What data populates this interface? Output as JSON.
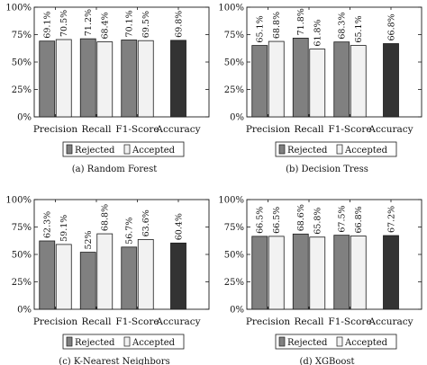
{
  "colors": {
    "rejected": "#808080",
    "accepted": "#f2f2f2",
    "accuracy": "#333333",
    "stroke": "#1a1a1a"
  },
  "chart_data": [
    {
      "type": "bar",
      "caption": "(a) Random Forest",
      "categories": [
        "Precision",
        "Recall",
        "F1-Score",
        "Accuracy"
      ],
      "series": [
        {
          "name": "Rejected",
          "values": [
            69.1,
            71.2,
            70.1,
            null
          ],
          "labels": [
            "69.1%",
            "71.2%",
            "70.1%",
            ""
          ]
        },
        {
          "name": "Accepted",
          "values": [
            70.5,
            68.4,
            69.5,
            null
          ],
          "labels": [
            "70.5%",
            "68.4%",
            "69.5%",
            ""
          ]
        },
        {
          "name": "",
          "values": [
            null,
            null,
            null,
            69.8
          ],
          "labels": [
            "",
            "",
            "",
            "69.8%"
          ]
        }
      ],
      "yticks": [
        "0%",
        "25%",
        "50%",
        "75%",
        "100%"
      ],
      "ylim": [
        0,
        100
      ],
      "legend": [
        "Rejected",
        "Accepted"
      ],
      "legend_position": "bottom"
    },
    {
      "type": "bar",
      "caption": "(b) Decision Tress",
      "categories": [
        "Precision",
        "Recall",
        "F1-Score",
        "Accuracy"
      ],
      "series": [
        {
          "name": "Rejected",
          "values": [
            65.1,
            71.8,
            68.3,
            null
          ],
          "labels": [
            "65.1%",
            "71.8%",
            "68.3%",
            ""
          ]
        },
        {
          "name": "Accepted",
          "values": [
            68.8,
            61.8,
            65.1,
            null
          ],
          "labels": [
            "68.8%",
            "61.8%",
            "65.1%",
            ""
          ]
        },
        {
          "name": "",
          "values": [
            null,
            null,
            null,
            66.8
          ],
          "labels": [
            "",
            "",
            "",
            "66.8%"
          ]
        }
      ],
      "yticks": [
        "0%",
        "25%",
        "50%",
        "75%",
        "100%"
      ],
      "ylim": [
        0,
        100
      ],
      "legend": [
        "Rejected",
        "Accepted"
      ],
      "legend_position": "bottom"
    },
    {
      "type": "bar",
      "caption": "(c) K-Nearest Neighbors",
      "categories": [
        "Precision",
        "Recall",
        "F1-Score",
        "Accuracy"
      ],
      "series": [
        {
          "name": "Rejected",
          "values": [
            62.3,
            52,
            56.7,
            null
          ],
          "labels": [
            "62.3%",
            "52%",
            "56.7%",
            ""
          ]
        },
        {
          "name": "Accepted",
          "values": [
            59.1,
            68.8,
            63.6,
            null
          ],
          "labels": [
            "59.1%",
            "68.8%",
            "63.6%",
            ""
          ]
        },
        {
          "name": "",
          "values": [
            null,
            null,
            null,
            60.4
          ],
          "labels": [
            "",
            "",
            "",
            "60.4%"
          ]
        }
      ],
      "yticks": [
        "0%",
        "25%",
        "50%",
        "75%",
        "100%"
      ],
      "ylim": [
        0,
        100
      ],
      "legend": [
        "Rejected",
        "Accepted"
      ],
      "legend_position": "bottom"
    },
    {
      "type": "bar",
      "caption": "(d) XGBoost",
      "categories": [
        "Precision",
        "Recall",
        "F1-Score",
        "Accuracy"
      ],
      "series": [
        {
          "name": "Rejected",
          "values": [
            66.5,
            68.6,
            67.5,
            null
          ],
          "labels": [
            "66.5%",
            "68.6%",
            "67.5%",
            ""
          ]
        },
        {
          "name": "Accepted",
          "values": [
            66.5,
            65.8,
            66.8,
            null
          ],
          "labels": [
            "66.5%",
            "65.8%",
            "66.8%",
            ""
          ]
        },
        {
          "name": "",
          "values": [
            null,
            null,
            null,
            67.2
          ],
          "labels": [
            "",
            "",
            "",
            "67.2%"
          ]
        }
      ],
      "yticks": [
        "0%",
        "25%",
        "50%",
        "75%",
        "100%"
      ],
      "ylim": [
        0,
        100
      ],
      "legend": [
        "Rejected",
        "Accepted"
      ],
      "legend_position": "bottom"
    }
  ]
}
